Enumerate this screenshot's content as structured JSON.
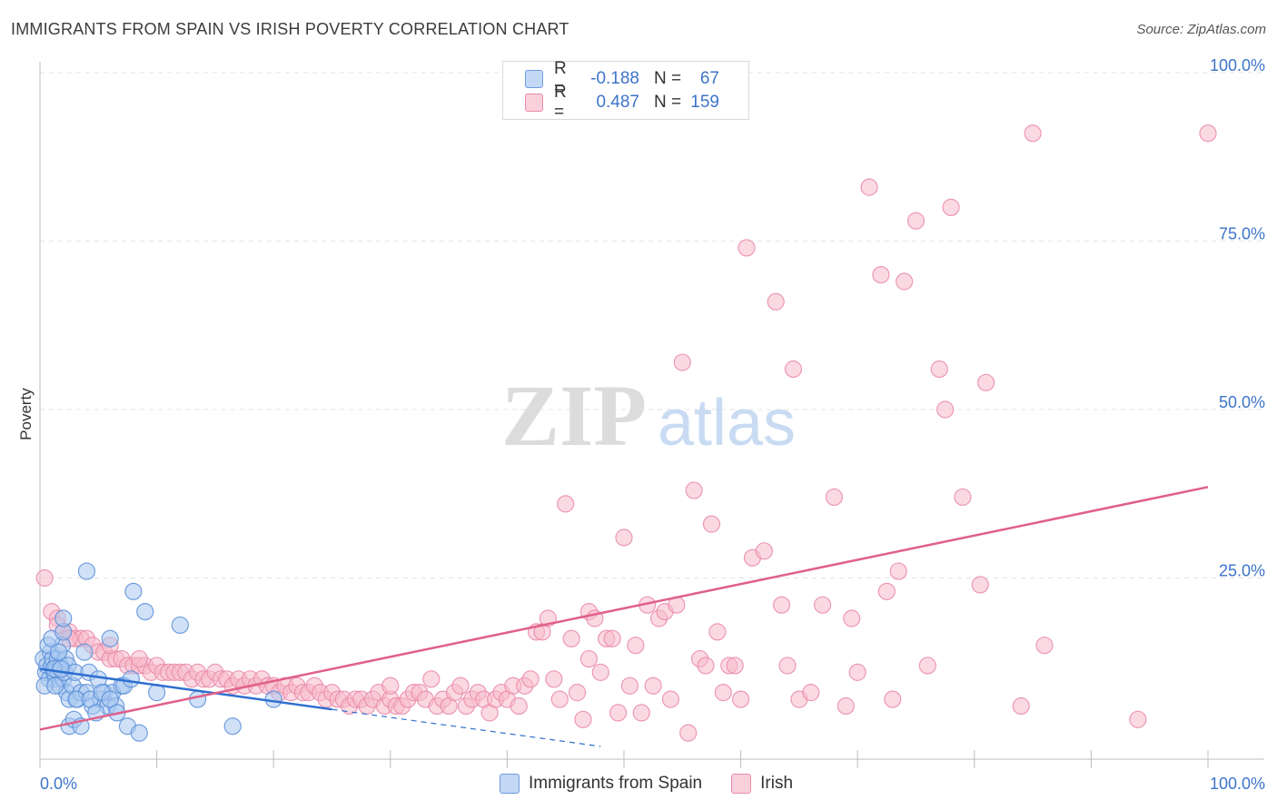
{
  "title": "IMMIGRANTS FROM SPAIN VS IRISH POVERTY CORRELATION CHART",
  "source": "Source: ZipAtlas.com",
  "watermark": {
    "zip": "ZIP",
    "atlas": "atlas"
  },
  "colors": {
    "blue_fill": "#a9c8f0",
    "blue_stroke": "#5b8fd8",
    "blue_line": "#2f6fcf",
    "pink_fill": "#f7b9cc",
    "pink_stroke": "#e98aa8",
    "pink_line": "#e0608a",
    "axis_label": "#3d74c9",
    "grid": "#e3e3e3"
  },
  "legend": {
    "r_label": "R =",
    "n_label": "N =",
    "rows": [
      {
        "series": "Immigrants from Spain",
        "r": "-0.188",
        "n": "67"
      },
      {
        "series": "Irish",
        "r": "0.487",
        "n": "159"
      }
    ]
  },
  "chart_data": {
    "type": "scatter",
    "title": "IMMIGRANTS FROM SPAIN VS IRISH POVERTY CORRELATION CHART",
    "xlabel": "",
    "ylabel": "Poverty",
    "xlim": [
      0,
      100
    ],
    "ylim": [
      0,
      100
    ],
    "x_tick_labels": {
      "left": "0.0%",
      "right": "100.0%"
    },
    "y_tick_labels": [
      "25.0%",
      "50.0%",
      "75.0%",
      "100.0%"
    ],
    "y_ticks": [
      25,
      50,
      75,
      100
    ],
    "grid": true,
    "series": [
      {
        "name": "Immigrants from Spain",
        "r": -0.188,
        "n": 67,
        "trend": {
          "x0": 0,
          "y0": 11.5,
          "x1": 25,
          "y1": 5.5,
          "dash_to_x": 48,
          "dash_to_y": 0
        },
        "points": [
          [
            0.3,
            13
          ],
          [
            0.5,
            11
          ],
          [
            0.6,
            12
          ],
          [
            0.8,
            10
          ],
          [
            0.9,
            14
          ],
          [
            1.0,
            12
          ],
          [
            1.1,
            13
          ],
          [
            1.2,
            11
          ],
          [
            1.3,
            10
          ],
          [
            1.4,
            12
          ],
          [
            1.5,
            13
          ],
          [
            1.6,
            11
          ],
          [
            1.7,
            9
          ],
          [
            1.8,
            12
          ],
          [
            1.9,
            15
          ],
          [
            2.0,
            10
          ],
          [
            2.1,
            11
          ],
          [
            2.2,
            13
          ],
          [
            2.3,
            8
          ],
          [
            2.4,
            12
          ],
          [
            0.4,
            9
          ],
          [
            0.7,
            15
          ],
          [
            1.0,
            16
          ],
          [
            1.3,
            9
          ],
          [
            1.6,
            14
          ],
          [
            2.0,
            17
          ],
          [
            2.5,
            7
          ],
          [
            2.8,
            9
          ],
          [
            3.0,
            11
          ],
          [
            3.2,
            7
          ],
          [
            3.5,
            8
          ],
          [
            3.8,
            14
          ],
          [
            4.0,
            8
          ],
          [
            4.2,
            11
          ],
          [
            4.5,
            6
          ],
          [
            5.0,
            10
          ],
          [
            5.2,
            7
          ],
          [
            5.5,
            8
          ],
          [
            5.8,
            6
          ],
          [
            6.0,
            16
          ],
          [
            6.2,
            8
          ],
          [
            6.5,
            6
          ],
          [
            7.0,
            9
          ],
          [
            7.2,
            9
          ],
          [
            7.5,
            3
          ],
          [
            7.8,
            10
          ],
          [
            8.0,
            23
          ],
          [
            8.5,
            2
          ],
          [
            9.0,
            20
          ],
          [
            4.0,
            26
          ],
          [
            2.0,
            19
          ],
          [
            2.5,
            3
          ],
          [
            2.9,
            4
          ],
          [
            3.1,
            7
          ],
          [
            3.5,
            3
          ],
          [
            4.3,
            7
          ],
          [
            4.8,
            5
          ],
          [
            5.3,
            8
          ],
          [
            6.0,
            7
          ],
          [
            6.6,
            5
          ],
          [
            10.0,
            8
          ],
          [
            12.0,
            18
          ],
          [
            13.5,
            7
          ],
          [
            16.5,
            3
          ],
          [
            20.0,
            7
          ],
          [
            1.2,
            11.5
          ],
          [
            1.8,
            11.5
          ]
        ]
      },
      {
        "name": "Irish",
        "r": 0.487,
        "n": 159,
        "trend": {
          "x0": 0,
          "y0": 2.5,
          "x1": 100,
          "y1": 38.5
        },
        "points": [
          [
            0.4,
            25
          ],
          [
            1.0,
            20
          ],
          [
            1.5,
            19
          ],
          [
            2.0,
            17
          ],
          [
            2.5,
            17
          ],
          [
            3.0,
            16
          ],
          [
            3.5,
            16
          ],
          [
            4.0,
            16
          ],
          [
            4.5,
            15
          ],
          [
            5.0,
            14
          ],
          [
            5.5,
            14
          ],
          [
            6.0,
            13
          ],
          [
            6.5,
            13
          ],
          [
            7.0,
            13
          ],
          [
            7.5,
            12
          ],
          [
            8.0,
            12
          ],
          [
            8.5,
            12
          ],
          [
            9.0,
            12
          ],
          [
            9.5,
            11
          ],
          [
            10.0,
            12
          ],
          [
            10.5,
            11
          ],
          [
            11.0,
            11
          ],
          [
            11.5,
            11
          ],
          [
            12.0,
            11
          ],
          [
            12.5,
            11
          ],
          [
            13.0,
            10
          ],
          [
            13.5,
            11
          ],
          [
            14.0,
            10
          ],
          [
            14.5,
            10
          ],
          [
            15.0,
            11
          ],
          [
            15.5,
            10
          ],
          [
            16.0,
            10
          ],
          [
            16.5,
            9
          ],
          [
            17.0,
            10
          ],
          [
            17.5,
            9
          ],
          [
            18.0,
            10
          ],
          [
            18.5,
            9
          ],
          [
            19.0,
            10
          ],
          [
            19.5,
            9
          ],
          [
            20.0,
            9
          ],
          [
            20.5,
            8
          ],
          [
            21.0,
            9
          ],
          [
            21.5,
            8
          ],
          [
            22.0,
            9
          ],
          [
            22.5,
            8
          ],
          [
            23.0,
            8
          ],
          [
            23.5,
            9
          ],
          [
            24.0,
            8
          ],
          [
            24.5,
            7
          ],
          [
            25.0,
            8
          ],
          [
            25.5,
            7
          ],
          [
            26.0,
            7
          ],
          [
            26.5,
            6
          ],
          [
            27.0,
            7
          ],
          [
            27.5,
            7
          ],
          [
            28.0,
            6
          ],
          [
            28.5,
            7
          ],
          [
            29.0,
            8
          ],
          [
            29.5,
            6
          ],
          [
            30.0,
            7
          ],
          [
            30.5,
            6
          ],
          [
            31.0,
            6
          ],
          [
            31.5,
            7
          ],
          [
            32.0,
            8
          ],
          [
            32.5,
            8
          ],
          [
            33.0,
            7
          ],
          [
            33.5,
            10
          ],
          [
            34.0,
            6
          ],
          [
            34.5,
            7
          ],
          [
            35.0,
            6
          ],
          [
            35.5,
            8
          ],
          [
            36.0,
            9
          ],
          [
            36.5,
            6
          ],
          [
            37.0,
            7
          ],
          [
            37.5,
            8
          ],
          [
            38.0,
            7
          ],
          [
            38.5,
            5
          ],
          [
            39.0,
            7
          ],
          [
            39.5,
            8
          ],
          [
            40.0,
            7
          ],
          [
            40.5,
            9
          ],
          [
            41.0,
            6
          ],
          [
            41.5,
            9
          ],
          [
            42.0,
            10
          ],
          [
            42.5,
            17
          ],
          [
            43.0,
            17
          ],
          [
            43.5,
            19
          ],
          [
            44.0,
            10
          ],
          [
            44.5,
            7
          ],
          [
            45.0,
            36
          ],
          [
            45.5,
            16
          ],
          [
            46.0,
            8
          ],
          [
            46.5,
            4
          ],
          [
            47.0,
            20
          ],
          [
            47.5,
            19
          ],
          [
            48.0,
            11
          ],
          [
            48.5,
            16
          ],
          [
            49.0,
            16
          ],
          [
            49.5,
            5
          ],
          [
            50.0,
            31
          ],
          [
            50.5,
            9
          ],
          [
            51.0,
            15
          ],
          [
            51.5,
            5
          ],
          [
            52.0,
            21
          ],
          [
            52.5,
            9
          ],
          [
            53.0,
            19
          ],
          [
            53.5,
            20
          ],
          [
            54.0,
            7
          ],
          [
            54.5,
            21
          ],
          [
            55.0,
            57
          ],
          [
            55.5,
            2
          ],
          [
            56.0,
            38
          ],
          [
            56.5,
            13
          ],
          [
            57.0,
            12
          ],
          [
            57.5,
            33
          ],
          [
            58.0,
            17
          ],
          [
            58.5,
            8
          ],
          [
            59.0,
            12
          ],
          [
            59.5,
            12
          ],
          [
            60.0,
            7
          ],
          [
            60.5,
            74
          ],
          [
            61.0,
            28
          ],
          [
            62.0,
            29
          ],
          [
            63.0,
            66
          ],
          [
            63.5,
            21
          ],
          [
            64.0,
            12
          ],
          [
            64.5,
            56
          ],
          [
            65.0,
            7
          ],
          [
            66.0,
            8
          ],
          [
            67.0,
            21
          ],
          [
            68.0,
            37
          ],
          [
            69.0,
            6
          ],
          [
            69.5,
            19
          ],
          [
            70.0,
            11
          ],
          [
            71.0,
            83
          ],
          [
            72.0,
            70
          ],
          [
            72.5,
            23
          ],
          [
            73.0,
            7
          ],
          [
            73.5,
            26
          ],
          [
            74.0,
            69
          ],
          [
            75.0,
            78
          ],
          [
            76.0,
            12
          ],
          [
            77.0,
            56
          ],
          [
            77.5,
            50
          ],
          [
            78.0,
            80
          ],
          [
            79.0,
            37
          ],
          [
            80.5,
            24
          ],
          [
            81.0,
            54
          ],
          [
            84.0,
            6
          ],
          [
            85.0,
            91
          ],
          [
            86.0,
            15
          ],
          [
            94.0,
            4
          ],
          [
            100.0,
            91
          ],
          [
            1.5,
            18
          ],
          [
            2.5,
            16
          ],
          [
            6.0,
            15
          ],
          [
            8.5,
            13
          ],
          [
            30.0,
            9
          ],
          [
            47.0,
            13
          ]
        ]
      }
    ]
  }
}
